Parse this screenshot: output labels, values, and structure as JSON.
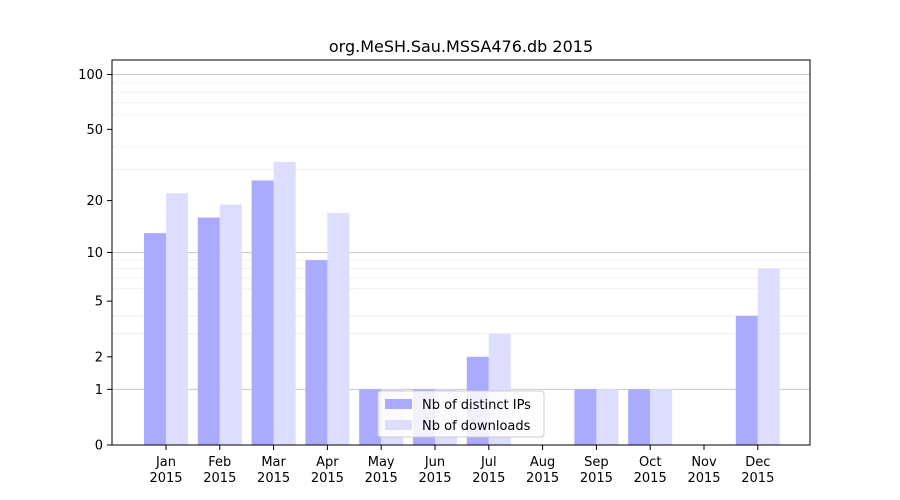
{
  "chart_data": {
    "type": "bar",
    "title": "org.MeSH.Sau.MSSA476.db 2015",
    "xlabel": "",
    "ylabel": "",
    "yscale": "log(1+y)",
    "ylim": [
      0,
      120
    ],
    "yticks": [
      0,
      1,
      2,
      5,
      10,
      20,
      50,
      100
    ],
    "categories": [
      [
        "Jan",
        "2015"
      ],
      [
        "Feb",
        "2015"
      ],
      [
        "Mar",
        "2015"
      ],
      [
        "Apr",
        "2015"
      ],
      [
        "May",
        "2015"
      ],
      [
        "Jun",
        "2015"
      ],
      [
        "Jul",
        "2015"
      ],
      [
        "Aug",
        "2015"
      ],
      [
        "Sep",
        "2015"
      ],
      [
        "Oct",
        "2015"
      ],
      [
        "Nov",
        "2015"
      ],
      [
        "Dec",
        "2015"
      ]
    ],
    "series": [
      {
        "name": "Nb of distinct IPs",
        "color": "#aaaaff",
        "values": [
          13,
          16,
          26,
          9,
          1,
          1,
          2,
          0,
          1,
          1,
          0,
          4
        ]
      },
      {
        "name": "Nb of downloads",
        "color": "#ddddff",
        "values": [
          22,
          19,
          33,
          17,
          1,
          1,
          3,
          0,
          1,
          1,
          0,
          8
        ]
      }
    ],
    "legend_position": "lower-center"
  }
}
